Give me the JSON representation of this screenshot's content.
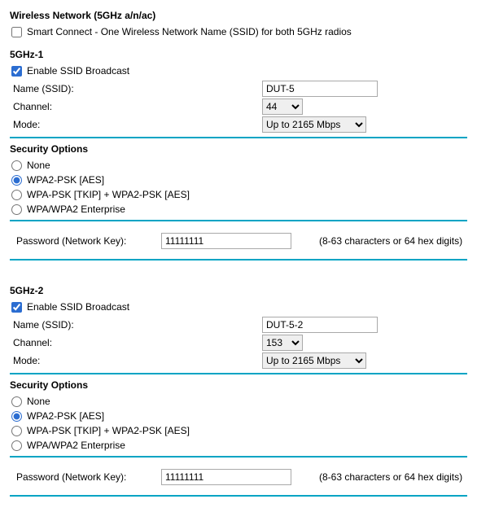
{
  "wireless": {
    "title": "Wireless Network (5GHz a/n/ac)",
    "smart_connect": {
      "label": "Smart Connect - One Wireless Network Name (SSID) for both 5GHz radios",
      "checked": false
    }
  },
  "ghz1": {
    "title": "5GHz-1",
    "enable_ssid": {
      "label": "Enable SSID Broadcast",
      "checked": true
    },
    "name_label": "Name (SSID):",
    "name_value": "DUT-5",
    "channel_label": "Channel:",
    "channel_value": "44",
    "channel_options": [
      "44"
    ],
    "mode_label": "Mode:",
    "mode_value": "Up to 2165 Mbps",
    "mode_options": [
      "Up to 2165 Mbps"
    ],
    "security_title": "Security Options",
    "security": {
      "none": "None",
      "wpa2_psk_aes": "WPA2-PSK [AES]",
      "wpa_psk_tkip_wpa2": "WPA-PSK [TKIP] + WPA2-PSK [AES]",
      "wpa_wpa2_enterprise": "WPA/WPA2 Enterprise",
      "selected": "wpa2_psk_aes"
    },
    "password_label": "Password (Network Key):",
    "password_value": "11111111",
    "password_hint": "(8-63 characters or 64 hex digits)"
  },
  "ghz2": {
    "title": "5GHz-2",
    "enable_ssid": {
      "label": "Enable SSID Broadcast",
      "checked": true
    },
    "name_label": "Name (SSID):",
    "name_value": "DUT-5-2",
    "channel_label": "Channel:",
    "channel_value": "153",
    "channel_options": [
      "153"
    ],
    "mode_label": "Mode:",
    "mode_value": "Up to 2165 Mbps",
    "mode_options": [
      "Up to 2165 Mbps"
    ],
    "security_title": "Security Options",
    "security": {
      "none": "None",
      "wpa2_psk_aes": "WPA2-PSK [AES]",
      "wpa_psk_tkip_wpa2": "WPA-PSK [TKIP] + WPA2-PSK [AES]",
      "wpa_wpa2_enterprise": "WPA/WPA2 Enterprise",
      "selected": "wpa2_psk_aes"
    },
    "password_label": "Password (Network Key):",
    "password_value": "11111111",
    "password_hint": "(8-63 characters or 64 hex digits)"
  },
  "colors": {
    "divider": "#00a4c4",
    "text": "#000000",
    "input_border": "#a9a9a9",
    "select_bg": "#efefef",
    "accent": "#2b6dd1"
  }
}
